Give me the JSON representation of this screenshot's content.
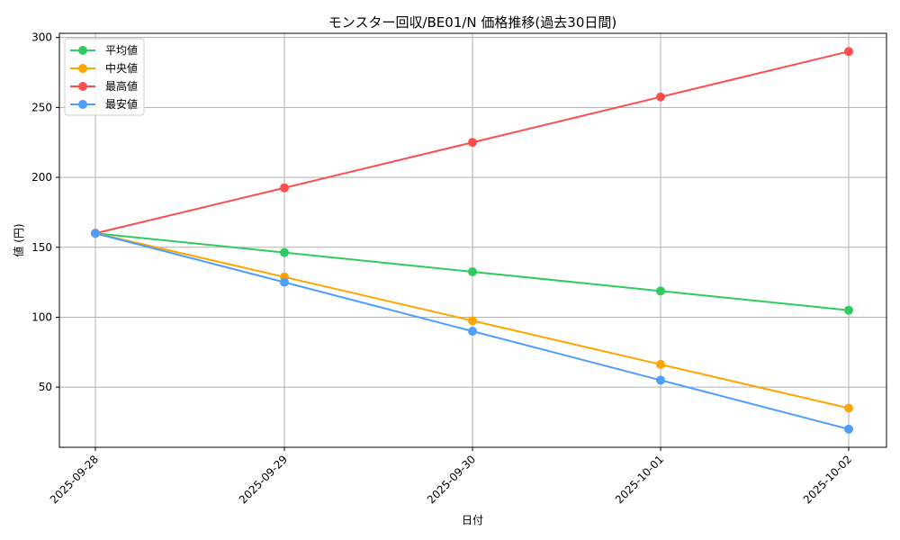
{
  "chart_data": {
    "type": "line",
    "title": "モンスター回収/BE01/N 価格推移(過去30日間)",
    "xlabel": "日付",
    "ylabel": "値 (円)",
    "categories": [
      "2025-09-28",
      "2025-09-29",
      "2025-09-30",
      "2025-10-01",
      "2025-10-02"
    ],
    "series": [
      {
        "name": "平均値",
        "color": "#2ecc5f",
        "values": [
          160,
          146.25,
          132.5,
          118.75,
          105
        ]
      },
      {
        "name": "中央値",
        "color": "#ffa500",
        "values": [
          160,
          128.75,
          97.5,
          66.25,
          35
        ]
      },
      {
        "name": "最高値",
        "color": "#ff4d4d",
        "values": [
          160,
          192.5,
          225,
          257.5,
          290
        ]
      },
      {
        "name": "最安値",
        "color": "#4d9eff",
        "values": [
          160,
          125,
          90,
          55,
          20
        ]
      }
    ],
    "yticks": [
      50,
      100,
      150,
      200,
      250,
      300
    ],
    "ylim": [
      7,
      303
    ],
    "grid": true,
    "legend_position": "upper left",
    "xtick_rotation": 45
  }
}
